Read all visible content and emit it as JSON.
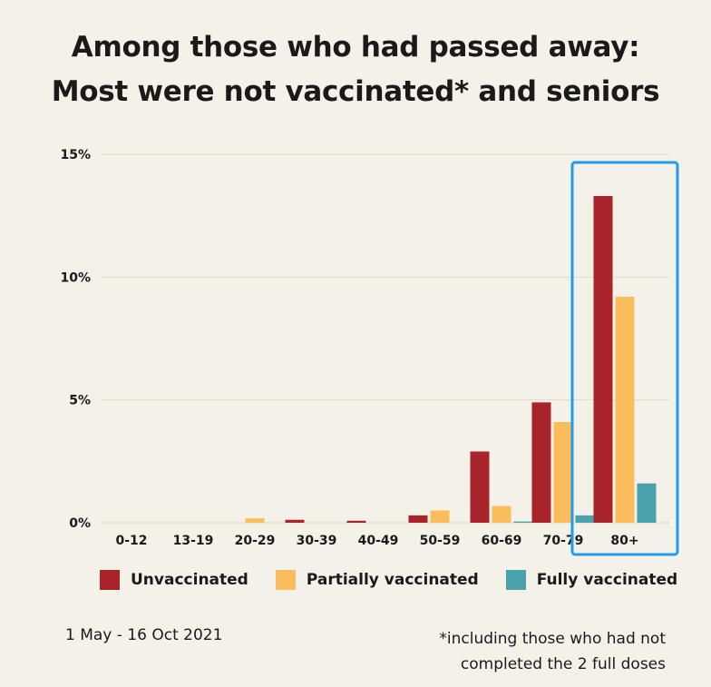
{
  "colors": {
    "unvaccinated": "#a8242a",
    "partially": "#fbbd5c",
    "fully": "#4aa3ac",
    "highlight": "#1f9cf0",
    "grid": "#dcd8cc"
  },
  "chart_data": {
    "type": "bar",
    "title": "Among those who had passed away: Most were not vaccinated* and seniors",
    "title_lines": [
      "Among those who had passed away:",
      "Most were not vaccinated* and seniors"
    ],
    "categories": [
      "0-12",
      "13-19",
      "20-29",
      "30-39",
      "40-49",
      "50-59",
      "60-69",
      "70-79",
      "80+"
    ],
    "series": [
      {
        "name": "Unvaccinated",
        "values": [
          0,
          0,
          0,
          0.12,
          0.08,
          0.3,
          2.9,
          4.9,
          13.3
        ]
      },
      {
        "name": "Partially vaccinated",
        "values": [
          0,
          0,
          0.18,
          0,
          0,
          0.5,
          0.68,
          4.1,
          9.2
        ]
      },
      {
        "name": "Fully vaccinated",
        "values": [
          0,
          0,
          0,
          0,
          0,
          0,
          0.05,
          0.3,
          1.6
        ]
      }
    ],
    "ylim": [
      0,
      15
    ],
    "yticks": [
      0,
      5,
      10,
      15
    ],
    "ytick_labels": [
      "0%",
      "5%",
      "10%",
      "15%"
    ],
    "grid": true,
    "legend_position": "bottom",
    "highlight_category": "80+"
  },
  "footer": {
    "date_range": "1 May - 16 Oct 2021",
    "note_line1": "*including those who had not",
    "note_line2": "completed the 2 full doses"
  }
}
